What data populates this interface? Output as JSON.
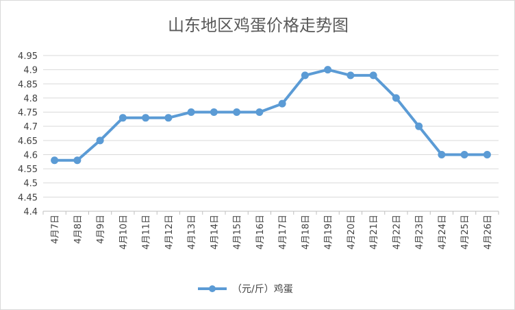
{
  "chart_data": {
    "type": "line",
    "title": "山东地区鸡蛋价格走势图",
    "xlabel": "",
    "ylabel": "",
    "categories": [
      "4月7日",
      "4月8日",
      "4月9日",
      "4月10日",
      "4月11日",
      "4月12日",
      "4月13日",
      "4月14日",
      "4月15日",
      "4月16日",
      "4月17日",
      "4月18日",
      "4月19日",
      "4月20日",
      "4月21日",
      "4月22日",
      "4月23日",
      "4月24日",
      "4月25日",
      "4月26日"
    ],
    "series": [
      {
        "name": "（元/斤）鸡蛋",
        "values": [
          4.58,
          4.58,
          4.65,
          4.73,
          4.73,
          4.73,
          4.75,
          4.75,
          4.75,
          4.75,
          4.78,
          4.88,
          4.9,
          4.88,
          4.88,
          4.8,
          4.7,
          4.6,
          4.6,
          4.6
        ],
        "color": "#5b9bd5"
      }
    ],
    "ylim": [
      4.4,
      4.95
    ],
    "yticks": [
      "4.95",
      "4.9",
      "4.85",
      "4.8",
      "4.75",
      "4.7",
      "4.65",
      "4.6",
      "4.55",
      "4.5",
      "4.45",
      "4.4"
    ],
    "grid": true,
    "legend": "bottom-center"
  }
}
